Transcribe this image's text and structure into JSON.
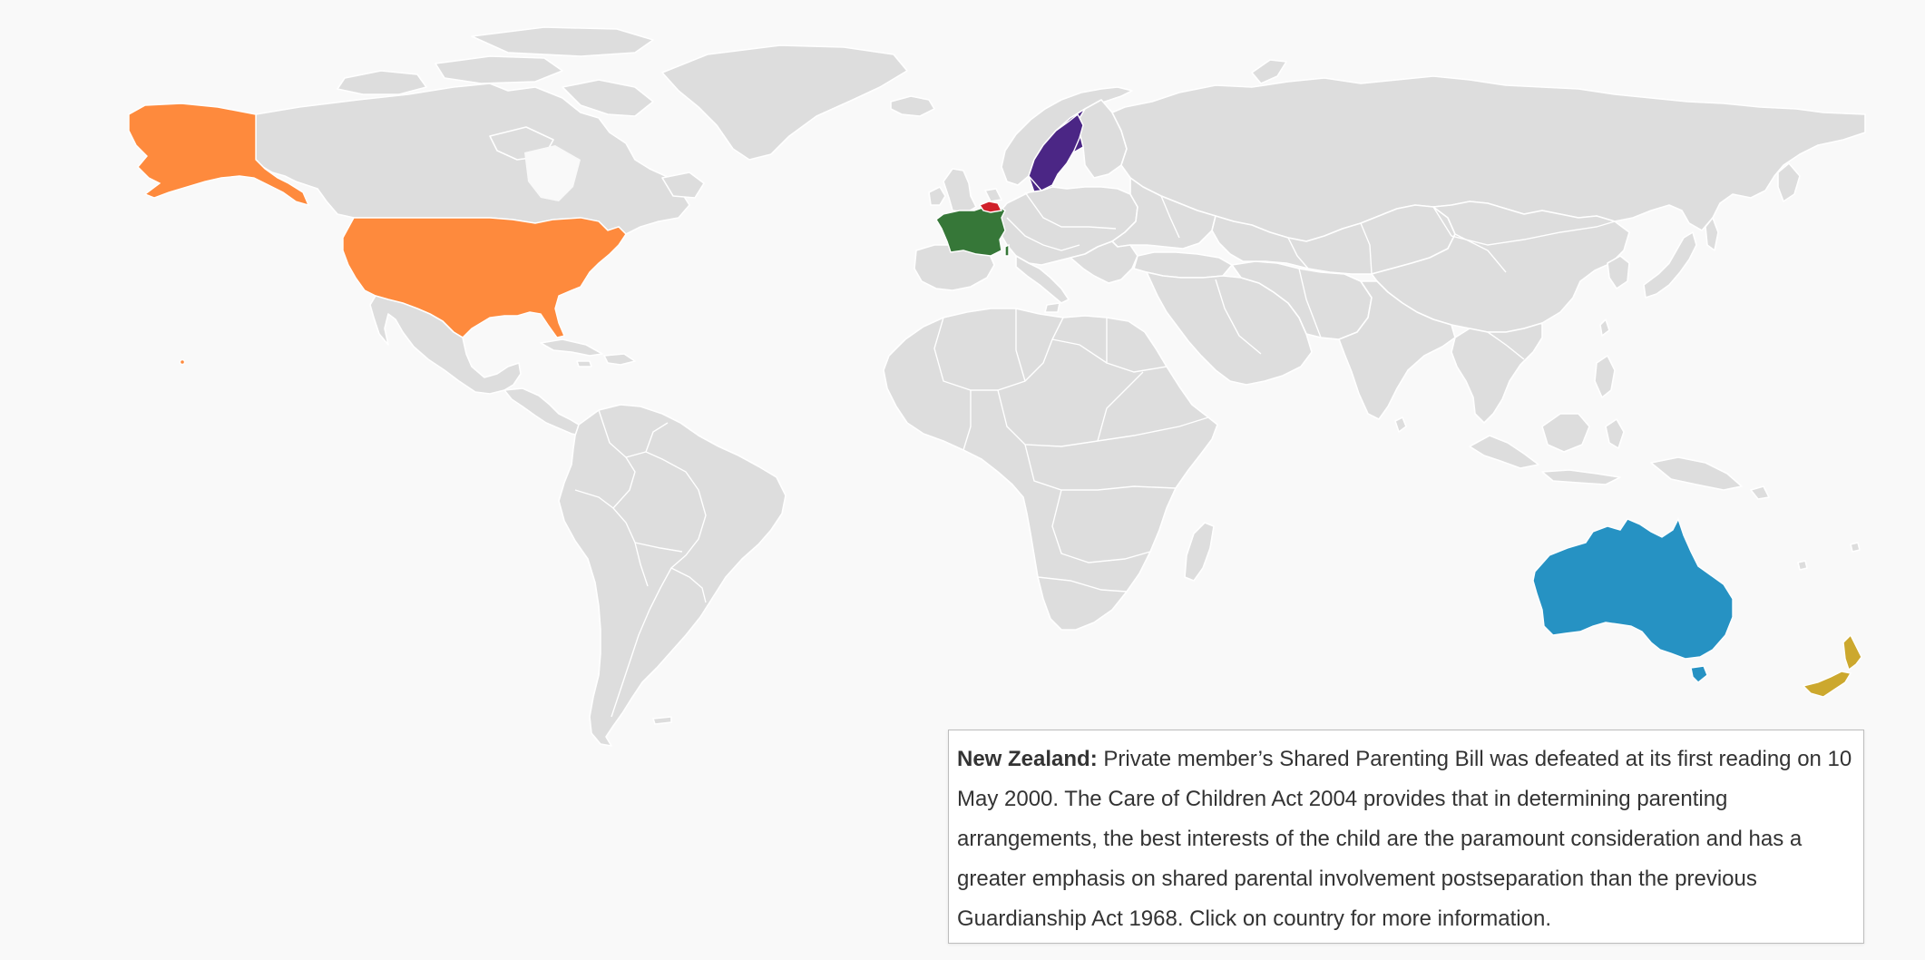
{
  "map": {
    "highlighted_countries": [
      {
        "name": "United States",
        "color": "#fe8a3d"
      },
      {
        "name": "France",
        "color": "#367738"
      },
      {
        "name": "Sweden",
        "color": "#4b2685"
      },
      {
        "name": "Belgium",
        "color": "#d0202a"
      },
      {
        "name": "Australia",
        "color": "#2692c3"
      },
      {
        "name": "New Zealand",
        "color": "#cca82e"
      }
    ],
    "base_land_color": "#dddddd",
    "border_color": "#ffffff",
    "background_color": "#f9f9f9"
  },
  "info_box": {
    "country": "New Zealand:",
    "text": " Private member’s Shared Parenting Bill was defeated at its first reading on 10 May 2000. The Care of Children Act 2004 provides that in determining parenting arrangements, the best interests of the child are the paramount consideration and has a greater emphasis on shared parental involvement postseparation than the previous Guardianship Act 1968. Click on country for more information."
  }
}
